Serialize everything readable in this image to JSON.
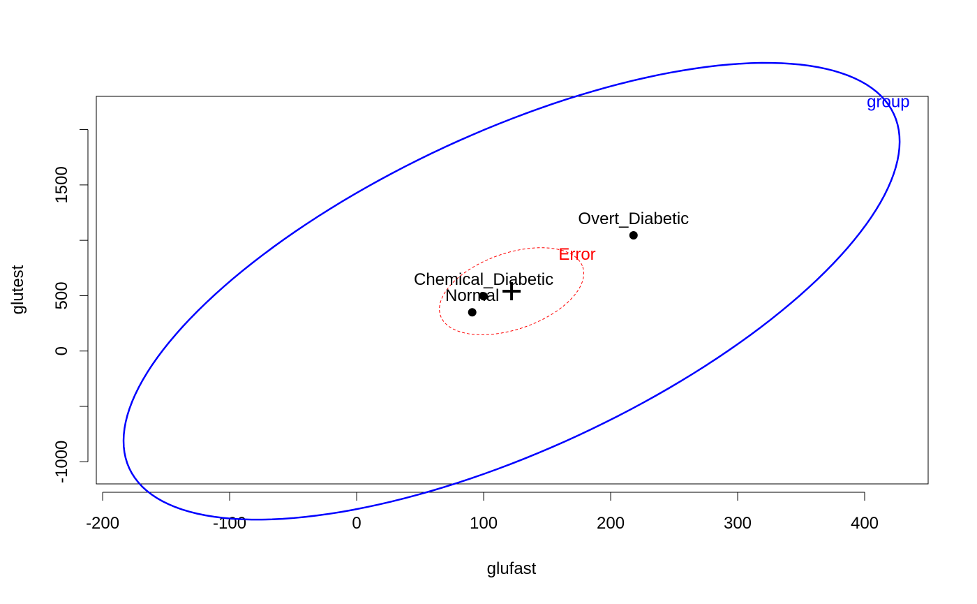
{
  "chart_data": {
    "type": "scatter",
    "title": "",
    "xlabel": "glufast",
    "ylabel": "glutest",
    "xlim": [
      -205,
      450
    ],
    "ylim": [
      -1200,
      2300
    ],
    "x_ticks": [
      -200,
      -100,
      0,
      100,
      200,
      300,
      400
    ],
    "x_tick_labels": [
      "-200",
      "-100",
      "0",
      "100",
      "200",
      "300",
      "400"
    ],
    "y_ticks": [
      -1000,
      -500,
      0,
      500,
      1000,
      1500,
      2000
    ],
    "y_tick_labels": [
      "-1000",
      "",
      "0",
      "500",
      "",
      "1500",
      ""
    ],
    "grid": false,
    "points": [
      {
        "label": "Normal",
        "x": 91,
        "y": 350
      },
      {
        "label": "Chemical_Diabetic",
        "x": 100,
        "y": 495
      },
      {
        "label": "Overt_Diabetic",
        "x": 218,
        "y": 1045
      }
    ],
    "grand_mean": {
      "x": 122,
      "y": 540
    },
    "ellipses": [
      {
        "label": "group",
        "color": "#0000ff",
        "style": "solid",
        "center": [
          122,
          540
        ],
        "ends": [
          [
            -179,
            -1060
          ],
          [
            423,
            2140
          ]
        ],
        "half_minor": 125
      },
      {
        "label": "Error",
        "color": "#ff0000",
        "style": "dashed",
        "center": [
          122,
          540
        ],
        "ends": [
          [
            66,
            320
          ],
          [
            178,
            760
          ]
        ],
        "half_minor": 30
      }
    ]
  }
}
